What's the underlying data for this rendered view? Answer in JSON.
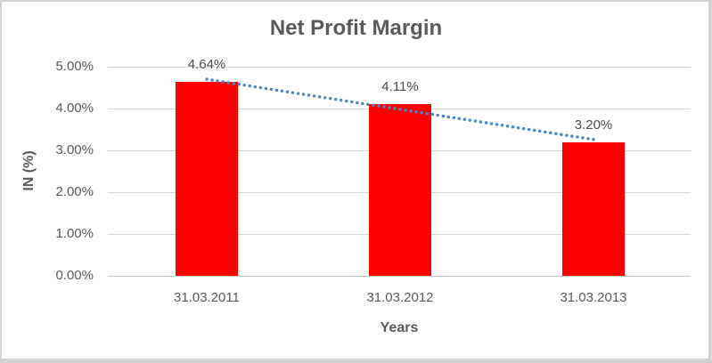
{
  "chart_data": {
    "type": "bar",
    "title": "Net Profit Margin",
    "categories": [
      "31.03.2011",
      "31.03.2012",
      "31.03.2013"
    ],
    "values": [
      4.64,
      4.11,
      3.2
    ],
    "data_labels": [
      "4.64%",
      "4.11%",
      "3.20%"
    ],
    "xlabel": "Years",
    "ylabel": "IN (%)",
    "ylim": [
      0,
      5
    ],
    "yticks": [
      {
        "value": 5,
        "label": "5.00%"
      },
      {
        "value": 4,
        "label": "4.00%"
      },
      {
        "value": 3,
        "label": "3.00%"
      },
      {
        "value": 2,
        "label": "2.00%"
      },
      {
        "value": 1,
        "label": "1.00%"
      },
      {
        "value": 0,
        "label": "0.00%"
      }
    ],
    "grid": true,
    "legend": "none",
    "colors": {
      "bar": "#FF0000",
      "trendline": "#4A86C8",
      "gridline": "#D9D9D9",
      "axis_line": "#C6C6C6",
      "text": "#595959"
    },
    "trendline": {
      "type": "linear",
      "style": "dotted",
      "start_value": 4.7,
      "end_value": 3.26
    }
  }
}
